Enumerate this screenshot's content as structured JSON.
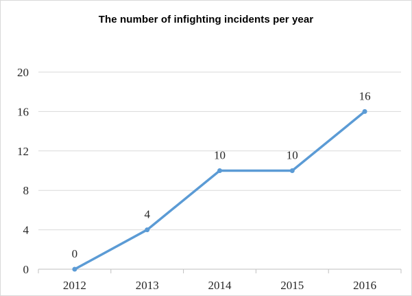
{
  "chart_data": {
    "type": "line",
    "title": "The number of infighting incidents per year",
    "xlabel": "",
    "ylabel": "",
    "categories": [
      "2012",
      "2013",
      "2014",
      "2015",
      "2016"
    ],
    "series": [
      {
        "values": [
          0,
          4,
          10,
          10,
          16
        ]
      }
    ],
    "ylim": [
      0,
      20
    ],
    "yticks": [
      0,
      4,
      8,
      12,
      16,
      20
    ],
    "grid": true,
    "legend": "none",
    "line_color": "#5b9bd5",
    "grid_color": "#d9d9d9"
  }
}
